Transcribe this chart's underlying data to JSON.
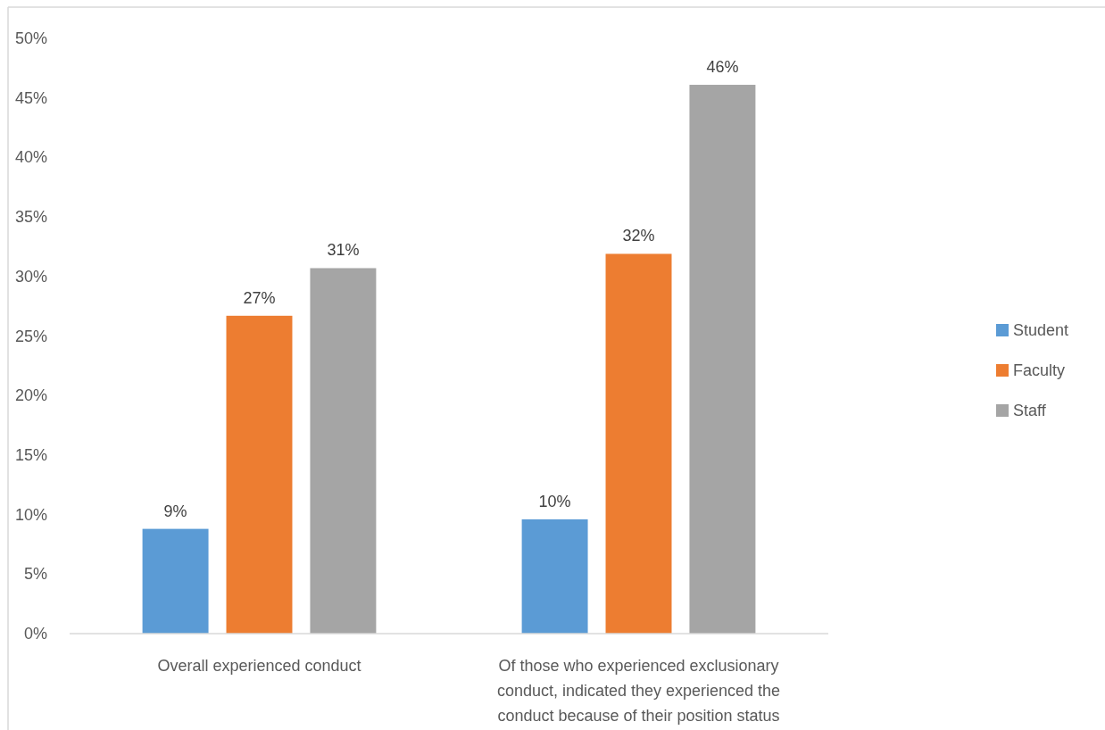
{
  "chart_data": {
    "type": "bar",
    "categories": [
      "Overall experienced conduct",
      "Of those who experienced exclusionary conduct, indicated they experienced the conduct because of their position status"
    ],
    "series": [
      {
        "name": "Student",
        "color": "#5b9bd5",
        "values": [
          8.8,
          9.6
        ],
        "value_labels": [
          "9%",
          "10%"
        ]
      },
      {
        "name": "Faculty",
        "color": "#ed7d31",
        "values": [
          26.7,
          31.9
        ],
        "value_labels": [
          "27%",
          "32%"
        ]
      },
      {
        "name": "Staff",
        "color": "#a5a5a5",
        "values": [
          30.7,
          46.1
        ],
        "value_labels": [
          "31%",
          "46%"
        ]
      }
    ],
    "ylim": [
      0,
      50
    ],
    "yticks": [
      {
        "value": 0,
        "label": "0%"
      },
      {
        "value": 5,
        "label": "5%"
      },
      {
        "value": 10,
        "label": "10%"
      },
      {
        "value": 15,
        "label": "15%"
      },
      {
        "value": 20,
        "label": "20%"
      },
      {
        "value": 25,
        "label": "25%"
      },
      {
        "value": 30,
        "label": "30%"
      },
      {
        "value": 35,
        "label": "35%"
      },
      {
        "value": 40,
        "label": "40%"
      },
      {
        "value": 45,
        "label": "45%"
      },
      {
        "value": 50,
        "label": "50%"
      }
    ],
    "legend": "right"
  }
}
